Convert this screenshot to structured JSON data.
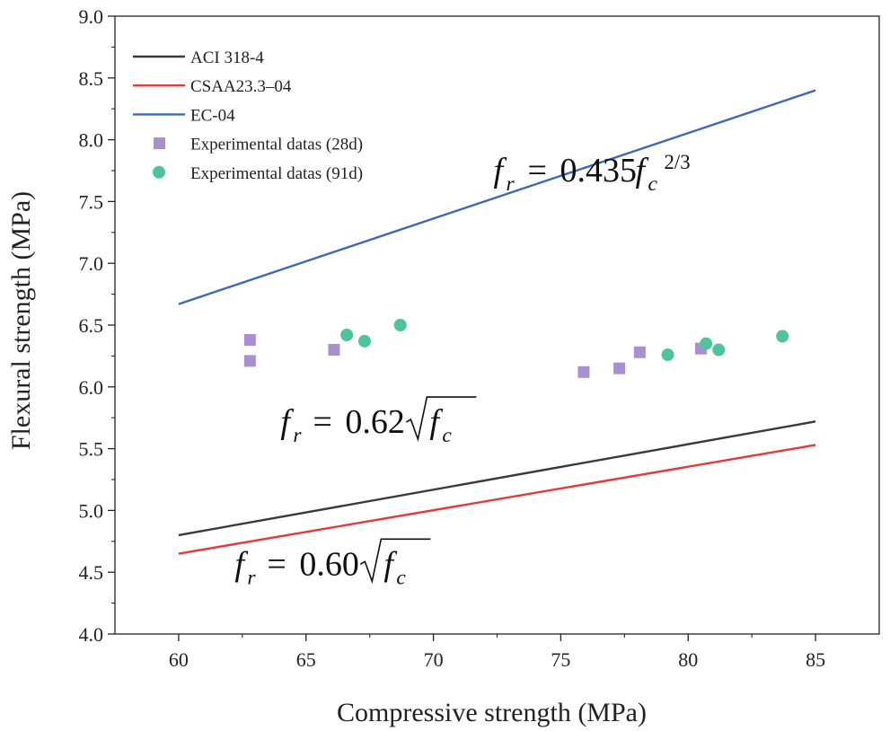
{
  "chart_data": {
    "type": "line",
    "title": "",
    "xlabel": "Compressive strength (MPa)",
    "ylabel": "Flexural strength (MPa)",
    "xlim": [
      57.5,
      87.5
    ],
    "ylim": [
      4.0,
      9.0
    ],
    "x_ticks": [
      60,
      65,
      70,
      75,
      80,
      85
    ],
    "y_ticks": [
      4.0,
      4.5,
      5.0,
      5.5,
      6.0,
      6.5,
      7.0,
      7.5,
      8.0,
      8.5,
      9.0
    ],
    "x_tick_labels": [
      "60",
      "65",
      "70",
      "75",
      "80",
      "85"
    ],
    "y_tick_labels": [
      "4.0",
      "4.5",
      "5.0",
      "5.5",
      "6.0",
      "6.5",
      "7.0",
      "7.5",
      "8.0",
      "8.5",
      "9.0"
    ],
    "grid": false,
    "legend_position": "top-left",
    "series": [
      {
        "name": "ACI 318-4",
        "kind": "line",
        "color": "#3a3a3a",
        "formula": "0.62*sqrt(x)",
        "x": [
          60,
          85
        ],
        "values": [
          4.8,
          5.72
        ]
      },
      {
        "name": "CSAA23.3–04",
        "kind": "line",
        "color": "#e8373a",
        "formula": "0.60*sqrt(x)",
        "x": [
          60,
          85
        ],
        "values": [
          4.65,
          5.53
        ]
      },
      {
        "name": "EC-04",
        "kind": "line",
        "color": "#3b68b8",
        "formula": "0.435*x^(2/3)",
        "x": [
          60,
          85
        ],
        "values": [
          6.67,
          8.4
        ]
      },
      {
        "name": "Experimental datas (28d)",
        "kind": "scatter",
        "marker": "square",
        "color": "#a98fcf",
        "points": [
          [
            62.8,
            6.38
          ],
          [
            62.8,
            6.21
          ],
          [
            66.1,
            6.3
          ],
          [
            75.9,
            6.12
          ],
          [
            77.3,
            6.15
          ],
          [
            78.1,
            6.28
          ],
          [
            80.5,
            6.31
          ]
        ]
      },
      {
        "name": "Experimental datas (91d)",
        "kind": "scatter",
        "marker": "circle",
        "color": "#4dc49a",
        "points": [
          [
            66.6,
            6.42
          ],
          [
            67.3,
            6.37
          ],
          [
            68.7,
            6.5
          ],
          [
            79.2,
            6.26
          ],
          [
            80.7,
            6.35
          ],
          [
            81.2,
            6.3
          ],
          [
            83.7,
            6.41
          ]
        ]
      }
    ],
    "annotations": [
      {
        "id": "ec",
        "at": [
          72.5,
          7.75
        ],
        "coef": "0.435",
        "exponent": "2/3",
        "f": "f",
        "sub_r": "r",
        "sub_c": "c",
        "eq": "="
      },
      {
        "id": "aci",
        "at": [
          64.0,
          5.7
        ],
        "coef": "0.62",
        "f": "f",
        "sub_r": "r",
        "sub_c": "c",
        "eq": "="
      },
      {
        "id": "csa",
        "at": [
          62.2,
          4.55
        ],
        "coef": "0.60",
        "f": "f",
        "sub_r": "r",
        "sub_c": "c",
        "eq": "="
      }
    ]
  }
}
